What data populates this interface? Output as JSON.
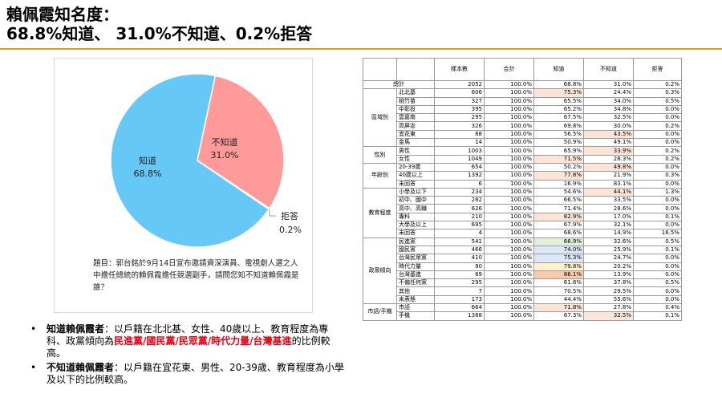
{
  "title": {
    "line1": "賴佩霞知名度：",
    "line2": "68.8%知道、 31.0%不知道、0.2%拒答"
  },
  "colors": {
    "know": "#66c8f7",
    "dont_know": "#ff9a9a",
    "refuse": "#9e9e9e",
    "accent_rule": "#c9a227",
    "emphasis": "#e60012"
  },
  "chart_data": [
    {
      "type": "pie",
      "categories": [
        "知道",
        "不知道",
        "拒答"
      ],
      "values": [
        68.8,
        31.0,
        0.2
      ],
      "labels": [
        "68.8%",
        "31.0%",
        "0.2%"
      ]
    },
    {
      "type": "table",
      "columns": [
        "",
        "",
        "樣本數",
        "合計",
        "知道",
        "不知道",
        "拒答"
      ],
      "total": {
        "label": "總計",
        "n": "2052",
        "sum": "100.0%",
        "know": "68.8%",
        "dont": "31.0%",
        "refuse": "0.2%"
      },
      "groups": [
        {
          "name": "區域別",
          "rows": [
            {
              "label": "北北基",
              "n": "606",
              "sum": "100.0%",
              "know": "75.3%",
              "dont": "24.4%",
              "refuse": "0.3%",
              "hl": "know-orange"
            },
            {
              "label": "桃竹苗",
              "n": "327",
              "sum": "100.0%",
              "know": "65.5%",
              "dont": "34.0%",
              "refuse": "0.5%"
            },
            {
              "label": "中彰投",
              "n": "395",
              "sum": "100.0%",
              "know": "65.2%",
              "dont": "34.8%",
              "refuse": "0.0%"
            },
            {
              "label": "雲嘉南",
              "n": "295",
              "sum": "100.0%",
              "know": "67.5%",
              "dont": "32.5%",
              "refuse": "0.0%"
            },
            {
              "label": "高屏澎",
              "n": "326",
              "sum": "100.0%",
              "know": "69.8%",
              "dont": "30.0%",
              "refuse": "0.2%"
            },
            {
              "label": "宜花東",
              "n": "88",
              "sum": "100.0%",
              "know": "56.5%",
              "dont": "43.5%",
              "refuse": "0.0%",
              "hl": "dont-orange"
            },
            {
              "label": "金馬",
              "n": "14",
              "sum": "100.0%",
              "know": "50.9%",
              "dont": "49.1%",
              "refuse": "0.0%"
            }
          ]
        },
        {
          "name": "性別",
          "rows": [
            {
              "label": "男性",
              "n": "1003",
              "sum": "100.0%",
              "know": "65.9%",
              "dont": "33.9%",
              "refuse": "0.2%",
              "hl": "dont-orange"
            },
            {
              "label": "女性",
              "n": "1049",
              "sum": "100.0%",
              "know": "71.5%",
              "dont": "28.3%",
              "refuse": "0.2%",
              "hl": "know-orange"
            }
          ]
        },
        {
          "name": "年齡別",
          "rows": [
            {
              "label": "20-39歲",
              "n": "654",
              "sum": "100.0%",
              "know": "50.2%",
              "dont": "49.8%",
              "refuse": "0.0%",
              "hl": "dont-orange"
            },
            {
              "label": "40歲以上",
              "n": "1392",
              "sum": "100.0%",
              "know": "77.8%",
              "dont": "21.9%",
              "refuse": "0.3%",
              "hl": "know-orange"
            },
            {
              "label": "未回答",
              "n": "6",
              "sum": "100.0%",
              "know": "16.9%",
              "dont": "83.1%",
              "refuse": "0.0%"
            }
          ]
        },
        {
          "name": "教育程度",
          "rows": [
            {
              "label": "小學及以下",
              "n": "234",
              "sum": "100.0%",
              "know": "54.6%",
              "dont": "44.1%",
              "refuse": "1.3%",
              "hl": "dont-orange"
            },
            {
              "label": "初中、國中",
              "n": "282",
              "sum": "100.0%",
              "know": "66.5%",
              "dont": "33.5%",
              "refuse": "0.0%"
            },
            {
              "label": "高中、高職",
              "n": "626",
              "sum": "100.0%",
              "know": "71.4%",
              "dont": "28.6%",
              "refuse": "0.0%"
            },
            {
              "label": "專科",
              "n": "210",
              "sum": "100.0%",
              "know": "82.9%",
              "dont": "17.0%",
              "refuse": "0.1%",
              "hl": "know-orange"
            },
            {
              "label": "大學及以上",
              "n": "695",
              "sum": "100.0%",
              "know": "67.9%",
              "dont": "32.1%",
              "refuse": "0.0%"
            },
            {
              "label": "未回答",
              "n": "4",
              "sum": "100.0%",
              "know": "68.6%",
              "dont": "14.9%",
              "refuse": "16.5%"
            }
          ]
        },
        {
          "name": "政黨傾向",
          "rows": [
            {
              "label": "民進黨",
              "n": "541",
              "sum": "100.0%",
              "know": "66.9%",
              "dont": "32.6%",
              "refuse": "0.5%",
              "hl": "know-green"
            },
            {
              "label": "國民黨",
              "n": "466",
              "sum": "100.0%",
              "know": "74.0%",
              "dont": "25.9%",
              "refuse": "0.1%",
              "hl": "know-blue"
            },
            {
              "label": "台灣民眾黨",
              "n": "410",
              "sum": "100.0%",
              "know": "75.3%",
              "dont": "24.7%",
              "refuse": "0.0%",
              "hl": "know-blue"
            },
            {
              "label": "時代力量",
              "n": "90",
              "sum": "100.0%",
              "know": "79.8%",
              "dont": "20.2%",
              "refuse": "0.0%",
              "hl": "know-yellow"
            },
            {
              "label": "台灣基進",
              "n": "69",
              "sum": "100.0%",
              "know": "86.1%",
              "dont": "13.9%",
              "refuse": "0.0%",
              "hl": "know-red"
            },
            {
              "label": "不偏任何黨",
              "n": "295",
              "sum": "100.0%",
              "know": "61.8%",
              "dont": "37.8%",
              "refuse": "0.5%"
            },
            {
              "label": "其他",
              "n": "7",
              "sum": "100.0%",
              "know": "70.5%",
              "dont": "29.5%",
              "refuse": "0.0%"
            },
            {
              "label": "未表態",
              "n": "173",
              "sum": "100.0%",
              "know": "44.4%",
              "dont": "55.6%",
              "refuse": "0.0%"
            }
          ]
        },
        {
          "name": "市話/手機",
          "rows": [
            {
              "label": "市話",
              "n": "664",
              "sum": "100.0%",
              "know": "71.8%",
              "dont": "27.8%",
              "refuse": "0.4%",
              "hl": "know-orange"
            },
            {
              "label": "手機",
              "n": "1388",
              "sum": "100.0%",
              "know": "67.3%",
              "dont": "32.5%",
              "refuse": "0.1%",
              "hl": "dont-orange"
            }
          ]
        }
      ]
    }
  ],
  "question": "題目：郭台銘於9月14日宣布邀請資深演員、電視劇人選之人中擔任總統的賴佩霞擔任競選副手，請問您知不知道賴佩霞是誰？",
  "bullets": {
    "b1_head": "知道賴佩霞者",
    "b1_text": "：以戶籍在北北基、女性、40歲以上、教育程度為專科、政黨傾向為",
    "b1_red": "民進黨/國民黨/民眾黨/時代力量/台灣基進",
    "b1_tail": "的比例較高。",
    "b2_head": "不知道賴佩霞者",
    "b2_text": "：以戶籍在宜花東、男性、20-39歲、教育程度為小學及以下的比例較高。"
  }
}
